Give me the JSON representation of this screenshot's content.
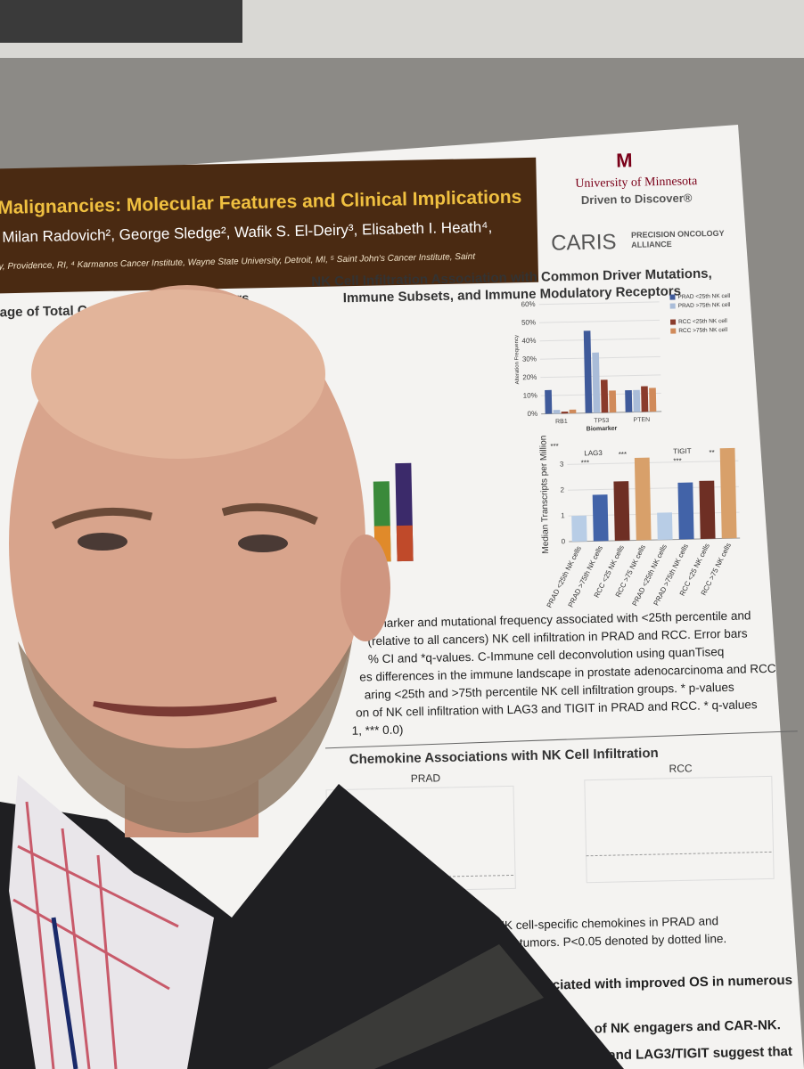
{
  "poster": {
    "title": "Malignancies: Molecular Features and Clinical Implications",
    "authors": ", Milan Radovich², George Sledge², Wafik S. El-Deiry³, Elisabeth I. Heath⁴,",
    "affiliations": "ity, Providence, RI, ⁴ Karmanos Cancer Institute, Wayne State University, Detroit, MI, ⁵ Saint John's Cancer Institute, Saint",
    "university": "University of Minnesota",
    "tagline": "Driven to Discover®",
    "caris": "CARIS",
    "alliance": [
      "PRECISION ONCOLOGY",
      "ALLIANCE"
    ],
    "left_heading": [
      "tage of Total Cells  Ac",
      "ncers"
    ],
    "section1_heading": [
      "NK Cell Infiltration Association with Common Driver Mutations,",
      "Immune Subsets, and Immune Modulatory Receptors"
    ],
    "caption1": [
      "iomarker  and  mutational frequency associated with <25th percentile and",
      "(relative to all cancers) NK cell infiltration in PRAD and RCC.  Error bars",
      "% CI and *q-values. C-Immune cell deconvolution using quanTiseq",
      "es differences in the immune landscape in prostate adenocarcinoma and RCC",
      "aring <25th and >75th percentile NK cell infiltration groups.  * p-values",
      "on of NK cell infiltration  with LAG3 and TIGIT in PRAD and RCC.  * q-values",
      "1, *** 0.0)"
    ],
    "section2_heading": "Chemokine Associations with NK Cell Infiltration",
    "panel_labels": [
      "PRAD",
      "RCC"
    ],
    "caption2": [
      "mple expression of NK cell-specific chemokines in PRAD and",
      "rsus low tumors.  P<0.05 denoted by dotted line."
    ],
    "conclusions": [
      "ociated with improved OS in numerous",
      "of NK engagers and CAR-NK.",
      "and LAG3/TIGIT suggest that"
    ]
  },
  "chart_data": [
    {
      "type": "bar",
      "x_label": "Biomarker",
      "y_label": "Alteration Frequency",
      "categories": [
        "RB1",
        "TP53",
        "PTEN"
      ],
      "series": [
        {
          "name": "PRAD <25th NK cell",
          "color": "#3f5a9a",
          "values": [
            13,
            45,
            12
          ]
        },
        {
          "name": "PRAD >75th NK cell",
          "color": "#a9bcd8",
          "values": [
            2,
            33,
            12
          ]
        },
        {
          "name": "RCC <25th NK cell",
          "color": "#8a3b2b",
          "values": [
            1,
            18,
            14
          ]
        },
        {
          "name": "RCC >75th NK cell",
          "color": "#d08a5a",
          "values": [
            2,
            12,
            13
          ]
        }
      ],
      "ylim": [
        0,
        60
      ],
      "yticks": [
        {
          "value": 0,
          "label": "0%"
        },
        {
          "value": 10,
          "label": "10%"
        },
        {
          "value": 20,
          "label": "20%"
        },
        {
          "value": 30,
          "label": "30%"
        },
        {
          "value": 40,
          "label": "40%"
        },
        {
          "value": 50,
          "label": "50%"
        },
        {
          "value": 60,
          "label": "60%"
        }
      ],
      "annotations": [
        "***",
        "**"
      ]
    },
    {
      "type": "bar",
      "y_label": "Median Transcripts per Million",
      "categories": [
        "PRAD <25th NK cells",
        "PRAD >75th NK cells",
        "RCC <25 NK cells",
        "RCC >75 NK cells",
        "PRAD <25th NK cells",
        "PRAD >75th NK cells",
        "RCC <25 NK cells",
        "RCC >75 NK cells"
      ],
      "values": [
        1.0,
        1.8,
        2.3,
        3.2,
        1.05,
        2.2,
        2.25,
        3.5
      ],
      "colors": [
        "#b8cde6",
        "#4263a8",
        "#6e2f24",
        "#d8a06a",
        "#b8cde6",
        "#4263a8",
        "#6e2f24",
        "#d8a06a"
      ],
      "ylim": [
        0,
        3.7
      ],
      "yticks": [
        0,
        1,
        2,
        3
      ],
      "annotations": [
        "LAG3",
        "***",
        "***",
        "TIGIT",
        "***",
        "**"
      ]
    }
  ]
}
